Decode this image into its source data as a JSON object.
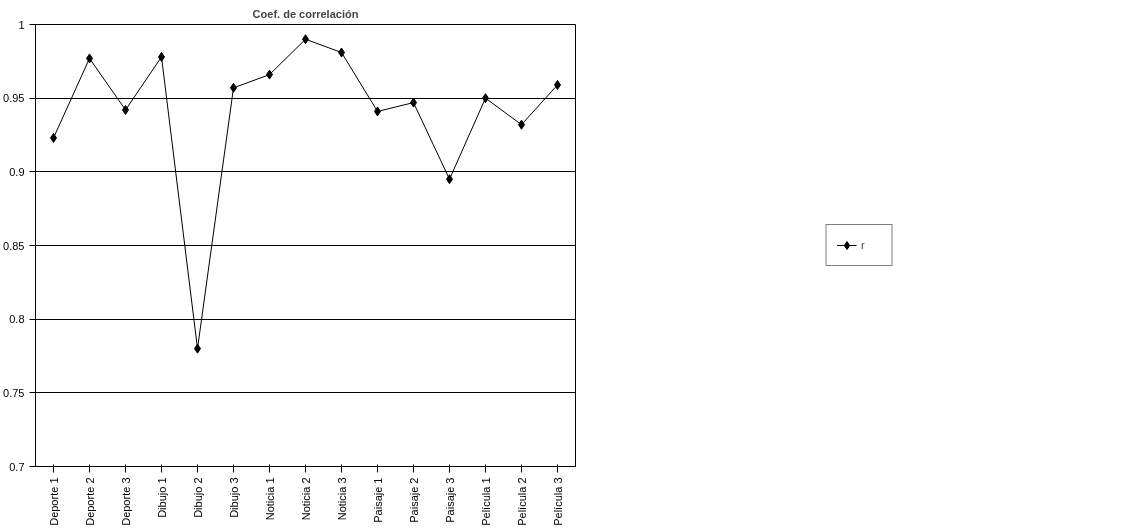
{
  "chart_data": {
    "type": "line",
    "title": "Coef. de correlación",
    "categories": [
      "Deporte 1",
      "Deporte 2",
      "Deporte 3",
      "Dibujo 1",
      "Dibujo 2",
      "Dibujo 3",
      "Noticia 1",
      "Noticia 2",
      "Noticia 3",
      "Paisaje 1",
      "Paisaje 2",
      "Paisaje 3",
      "Película 1",
      "Película 2",
      "Película 3"
    ],
    "series": [
      {
        "name": "r",
        "color": "#000000",
        "values": [
          0.923,
          0.977,
          0.942,
          0.978,
          0.78,
          0.957,
          0.966,
          0.99,
          0.981,
          0.941,
          0.947,
          0.895,
          0.95,
          0.932,
          0.959
        ]
      }
    ],
    "ylim": [
      0.7,
      1
    ],
    "yticks": [
      0.7,
      0.75,
      0.8,
      0.85,
      0.9,
      0.95,
      1
    ],
    "grid": "y",
    "legend": "right",
    "marker": "diamond",
    "line_style": "solid"
  }
}
